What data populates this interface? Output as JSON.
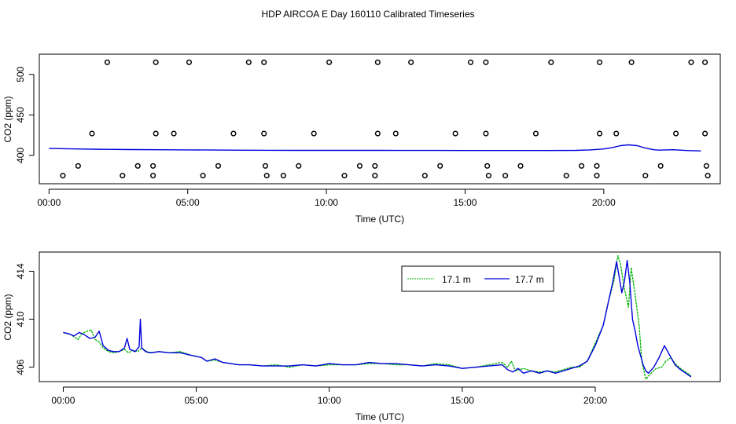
{
  "title": "HDP AIRCOA E  Day 160110  Calibrated Timeseries",
  "colors": {
    "series_17_1": "#00b400",
    "series_17_7": "#0000dd",
    "axis": "#000000"
  },
  "chart_data": [
    {
      "type": "scatter",
      "xlabel": "Time (UTC)",
      "ylabel": "CO2 (ppm)",
      "xlim": [
        -0.35,
        24.2
      ],
      "ylim": [
        365,
        525
      ],
      "xticks": [
        0,
        5,
        10,
        15,
        20
      ],
      "xtick_labels": [
        "00:00",
        "05:00",
        "10:00",
        "15:00",
        "20:00"
      ],
      "yticks": [
        400,
        450,
        500
      ],
      "ytick_labels": [
        "400",
        "450",
        "500"
      ],
      "grid": false,
      "points": [
        {
          "x": 0.5,
          "y": 375
        },
        {
          "x": 1.05,
          "y": 387
        },
        {
          "x": 1.55,
          "y": 427
        },
        {
          "x": 2.1,
          "y": 515
        },
        {
          "x": 2.65,
          "y": 375
        },
        {
          "x": 3.2,
          "y": 387
        },
        {
          "x": 3.75,
          "y": 375
        },
        {
          "x": 3.75,
          "y": 387
        },
        {
          "x": 3.85,
          "y": 427
        },
        {
          "x": 3.85,
          "y": 515
        },
        {
          "x": 4.5,
          "y": 427
        },
        {
          "x": 5.05,
          "y": 515
        },
        {
          "x": 5.55,
          "y": 375
        },
        {
          "x": 6.1,
          "y": 387
        },
        {
          "x": 6.65,
          "y": 427
        },
        {
          "x": 7.2,
          "y": 515
        },
        {
          "x": 7.75,
          "y": 515
        },
        {
          "x": 7.75,
          "y": 427
        },
        {
          "x": 7.8,
          "y": 387
        },
        {
          "x": 7.85,
          "y": 375
        },
        {
          "x": 8.45,
          "y": 375
        },
        {
          "x": 9.0,
          "y": 387
        },
        {
          "x": 9.55,
          "y": 427
        },
        {
          "x": 10.1,
          "y": 515
        },
        {
          "x": 10.65,
          "y": 375
        },
        {
          "x": 11.2,
          "y": 387
        },
        {
          "x": 11.75,
          "y": 375
        },
        {
          "x": 11.75,
          "y": 387
        },
        {
          "x": 11.85,
          "y": 427
        },
        {
          "x": 11.85,
          "y": 515
        },
        {
          "x": 12.5,
          "y": 427
        },
        {
          "x": 13.05,
          "y": 515
        },
        {
          "x": 13.55,
          "y": 375
        },
        {
          "x": 14.1,
          "y": 387
        },
        {
          "x": 14.65,
          "y": 427
        },
        {
          "x": 15.2,
          "y": 515
        },
        {
          "x": 15.75,
          "y": 515
        },
        {
          "x": 15.75,
          "y": 427
        },
        {
          "x": 15.8,
          "y": 387
        },
        {
          "x": 15.85,
          "y": 375
        },
        {
          "x": 16.45,
          "y": 375
        },
        {
          "x": 17.0,
          "y": 387
        },
        {
          "x": 17.55,
          "y": 427
        },
        {
          "x": 18.1,
          "y": 515
        },
        {
          "x": 18.65,
          "y": 375
        },
        {
          "x": 19.2,
          "y": 387
        },
        {
          "x": 19.75,
          "y": 375
        },
        {
          "x": 19.75,
          "y": 387
        },
        {
          "x": 19.85,
          "y": 427
        },
        {
          "x": 19.85,
          "y": 515
        },
        {
          "x": 20.45,
          "y": 427
        },
        {
          "x": 21.0,
          "y": 515
        },
        {
          "x": 21.5,
          "y": 375
        },
        {
          "x": 22.05,
          "y": 387
        },
        {
          "x": 22.6,
          "y": 427
        },
        {
          "x": 23.15,
          "y": 515
        },
        {
          "x": 23.65,
          "y": 515
        },
        {
          "x": 23.65,
          "y": 427
        },
        {
          "x": 23.7,
          "y": 387
        },
        {
          "x": 23.75,
          "y": 375
        }
      ],
      "series": [
        {
          "color": "#0000dd",
          "x": [
            0,
            1,
            2,
            3,
            4,
            5,
            6,
            7,
            8,
            9,
            10,
            11,
            12,
            13,
            14,
            15,
            16,
            17,
            18,
            19,
            19.5,
            20,
            20.3,
            20.6,
            20.9,
            21.2,
            21.5,
            21.8,
            22,
            22.5,
            23,
            23.5
          ],
          "y": [
            408.5,
            408,
            407.5,
            407.2,
            407,
            406.8,
            406.6,
            406.4,
            406.3,
            406.2,
            406.2,
            406.2,
            406.2,
            406.1,
            406.1,
            406,
            406,
            406,
            406,
            406.2,
            406.8,
            408,
            409.5,
            412,
            413,
            412,
            409,
            407,
            406.5,
            407,
            406,
            405.5
          ]
        }
      ]
    },
    {
      "type": "line",
      "xlabel": "Time (UTC)",
      "ylabel": "CO2 (ppm)",
      "xlim": [
        -0.9,
        24.7
      ],
      "ylim": [
        404.8,
        415.6
      ],
      "xticks": [
        0,
        5,
        10,
        15,
        20
      ],
      "xtick_labels": [
        "00:00",
        "05:00",
        "10:00",
        "15:00",
        "20:00"
      ],
      "yticks": [
        406,
        410,
        414
      ],
      "ytick_labels": [
        "406",
        "410",
        "414"
      ],
      "grid": false,
      "legend": "top-right",
      "series": [
        {
          "name": "17.1 m",
          "color": "#00b400",
          "x": [
            0,
            0.3,
            0.55,
            0.7,
            0.9,
            1.05,
            1.2,
            1.35,
            1.5,
            1.7,
            1.9,
            2.1,
            2.3,
            2.45,
            2.6,
            2.8,
            2.95,
            3.2,
            3.6,
            4.0,
            4.4,
            4.8,
            5.2,
            5.4,
            5.7,
            6.0,
            6.3,
            6.6,
            7.0,
            7.5,
            8.0,
            8.5,
            9.0,
            9.5,
            10.0,
            10.5,
            11.0,
            11.5,
            12.0,
            12.5,
            13.0,
            13.5,
            14.0,
            14.5,
            15.0,
            15.5,
            16.0,
            16.5,
            16.7,
            16.85,
            17.0,
            17.3,
            17.6,
            17.9,
            18.2,
            18.5,
            18.8,
            19.1,
            19.4,
            19.7,
            20.0,
            20.3,
            20.5,
            20.7,
            20.85,
            20.95,
            21.1,
            21.25,
            21.35,
            21.5,
            21.65,
            21.75,
            21.9,
            22.1,
            22.3,
            22.5,
            22.65,
            22.85,
            23.0,
            23.2,
            23.4,
            23.6
          ],
          "y": [
            408.9,
            408.7,
            408.3,
            408.8,
            409.0,
            409.1,
            408.3,
            408.1,
            407.6,
            407.3,
            407.2,
            407.3,
            407.5,
            407.2,
            407.4,
            407.3,
            407.6,
            407.2,
            407.3,
            407.2,
            407.3,
            407.0,
            406.8,
            406.5,
            406.6,
            406.4,
            406.3,
            406.2,
            406.2,
            406.1,
            406.2,
            406.0,
            406.2,
            406.1,
            406.2,
            406.2,
            406.2,
            406.3,
            406.3,
            406.2,
            406.2,
            406.1,
            406.3,
            406.2,
            405.9,
            406.0,
            406.2,
            406.4,
            406.0,
            406.5,
            405.7,
            405.9,
            405.7,
            405.6,
            405.7,
            405.6,
            405.8,
            406.0,
            406.0,
            406.5,
            408.0,
            409.5,
            411.5,
            413.2,
            415.3,
            414.6,
            412.5,
            411.0,
            414.3,
            412.0,
            409.5,
            406.5,
            405.0,
            405.5,
            405.9,
            406.0,
            406.5,
            406.8,
            406.3,
            405.9,
            405.6,
            405.3
          ]
        },
        {
          "name": "17.7 m",
          "color": "#0000dd",
          "x": [
            0,
            0.2,
            0.4,
            0.6,
            0.8,
            1.0,
            1.2,
            1.35,
            1.5,
            1.7,
            1.9,
            2.1,
            2.3,
            2.4,
            2.5,
            2.7,
            2.85,
            2.9,
            2.95,
            3.1,
            3.3,
            3.6,
            4.0,
            4.4,
            4.8,
            5.2,
            5.4,
            5.7,
            6.0,
            6.3,
            6.6,
            7.0,
            7.5,
            8.0,
            8.5,
            9.0,
            9.5,
            10.0,
            10.5,
            11.0,
            11.5,
            12.0,
            12.5,
            13.0,
            13.5,
            14.0,
            14.5,
            15.0,
            15.5,
            16.0,
            16.5,
            16.7,
            16.9,
            17.1,
            17.3,
            17.6,
            17.9,
            18.2,
            18.5,
            18.8,
            19.1,
            19.4,
            19.7,
            20.0,
            20.3,
            20.5,
            20.65,
            20.8,
            20.9,
            21.0,
            21.1,
            21.2,
            21.3,
            21.4,
            21.5,
            21.6,
            21.7,
            21.8,
            21.9,
            22.0,
            22.2,
            22.4,
            22.6,
            22.8,
            23.0,
            23.2,
            23.4,
            23.6
          ],
          "y": [
            408.9,
            408.8,
            408.6,
            408.9,
            408.7,
            408.4,
            408.5,
            409.0,
            407.8,
            407.4,
            407.3,
            407.3,
            407.6,
            408.4,
            407.5,
            407.3,
            407.7,
            410.0,
            407.6,
            407.3,
            407.2,
            407.3,
            407.2,
            407.2,
            407.0,
            406.8,
            406.5,
            406.7,
            406.4,
            406.3,
            406.2,
            406.2,
            406.1,
            406.1,
            406.1,
            406.2,
            406.1,
            406.3,
            406.2,
            406.2,
            406.4,
            406.3,
            406.3,
            406.2,
            406.1,
            406.2,
            406.1,
            405.9,
            406.0,
            406.1,
            406.2,
            405.8,
            405.6,
            405.9,
            405.5,
            405.7,
            405.5,
            405.7,
            405.5,
            405.7,
            405.9,
            406.1,
            406.5,
            407.8,
            409.5,
            411.5,
            413.0,
            414.8,
            413.5,
            412.2,
            413.2,
            414.9,
            413.0,
            410.0,
            409.0,
            407.8,
            407.0,
            406.2,
            405.7,
            405.5,
            406.0,
            406.8,
            407.8,
            407.0,
            406.2,
            405.8,
            405.5,
            405.2
          ]
        }
      ]
    }
  ]
}
